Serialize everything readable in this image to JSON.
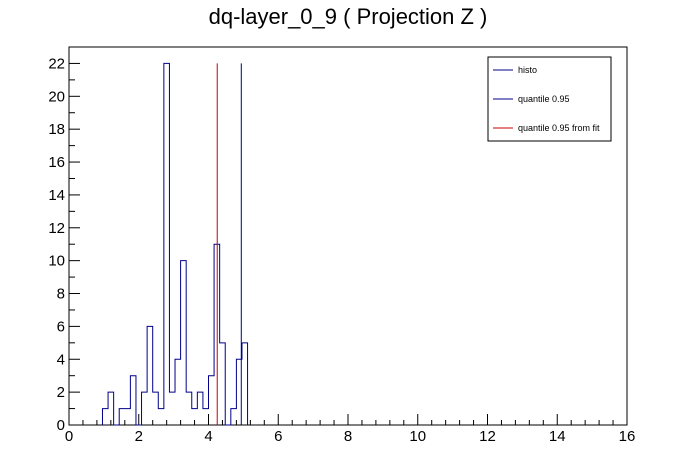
{
  "chart_data": {
    "type": "histogram",
    "title": "dq-layer_0_9 ( Projection Z )",
    "xlabel": "",
    "ylabel": "",
    "xlim": [
      0,
      16
    ],
    "ylim": [
      0,
      23
    ],
    "bin_width": 0.16,
    "x_ticks": [
      0,
      2,
      4,
      6,
      8,
      10,
      12,
      14,
      16
    ],
    "y_ticks": [
      0,
      2,
      4,
      6,
      8,
      10,
      12,
      14,
      16,
      18,
      20,
      22
    ],
    "bins": [
      {
        "x": 0.96,
        "y": 1
      },
      {
        "x": 1.12,
        "y": 2
      },
      {
        "x": 1.28,
        "y": 0
      },
      {
        "x": 1.44,
        "y": 1
      },
      {
        "x": 1.6,
        "y": 1
      },
      {
        "x": 1.76,
        "y": 3
      },
      {
        "x": 1.92,
        "y": 0
      },
      {
        "x": 2.08,
        "y": 2
      },
      {
        "x": 2.24,
        "y": 6
      },
      {
        "x": 2.4,
        "y": 2
      },
      {
        "x": 2.56,
        "y": 1
      },
      {
        "x": 2.72,
        "y": 22
      },
      {
        "x": 2.88,
        "y": 2
      },
      {
        "x": 3.04,
        "y": 4
      },
      {
        "x": 3.2,
        "y": 10
      },
      {
        "x": 3.36,
        "y": 2
      },
      {
        "x": 3.52,
        "y": 1
      },
      {
        "x": 3.68,
        "y": 2
      },
      {
        "x": 3.84,
        "y": 1
      },
      {
        "x": 4.0,
        "y": 3
      },
      {
        "x": 4.16,
        "y": 11
      },
      {
        "x": 4.32,
        "y": 5
      },
      {
        "x": 4.48,
        "y": 0
      },
      {
        "x": 4.64,
        "y": 1
      },
      {
        "x": 4.8,
        "y": 4
      },
      {
        "x": 4.96,
        "y": 5
      }
    ],
    "lines": [
      {
        "name": "quantile 0.95",
        "x": 4.94,
        "y": 22,
        "color": "#00008b"
      },
      {
        "name": "quantile 0.95 from fit",
        "x": 4.25,
        "y": 22,
        "color": "#cc0000"
      }
    ],
    "legend": {
      "placement": "top-right",
      "entries": [
        {
          "label": "histo",
          "color": "#00008b"
        },
        {
          "label": "quantile 0.95",
          "color": "#00008b"
        },
        {
          "label": "quantile 0.95 from fit",
          "color": "#cc0000"
        }
      ]
    },
    "histo_color": "#00008b",
    "grid": false
  }
}
